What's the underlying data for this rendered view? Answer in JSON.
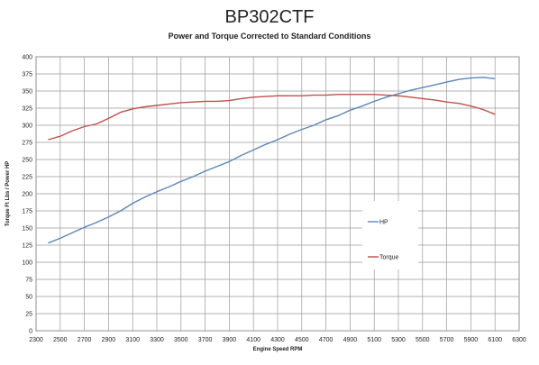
{
  "chart_data": {
    "type": "line",
    "title": "BP302CTF",
    "subtitle": "Power and Torque Corrected to Standard Conditions",
    "xlabel": "Engine Speed RPM",
    "ylabel": "Torque Ft Lbs / Power HP",
    "xlim": [
      2300,
      6300
    ],
    "ylim": [
      0,
      400
    ],
    "xticks": [
      2300,
      2500,
      2700,
      2900,
      3100,
      3300,
      3500,
      3700,
      3900,
      4100,
      4300,
      4500,
      4700,
      4900,
      5100,
      5300,
      5500,
      5700,
      5900,
      6100,
      6300
    ],
    "yticks": [
      0,
      25,
      50,
      75,
      100,
      125,
      150,
      175,
      200,
      225,
      250,
      275,
      300,
      325,
      350,
      375,
      400
    ],
    "grid": true,
    "legend_position": "right",
    "series": [
      {
        "name": "HP",
        "color": "#5b87b8",
        "x": [
          2400,
          2500,
          2600,
          2700,
          2800,
          2900,
          3000,
          3100,
          3200,
          3300,
          3400,
          3500,
          3600,
          3700,
          3800,
          3900,
          4000,
          4100,
          4200,
          4300,
          4400,
          4500,
          4600,
          4700,
          4800,
          4900,
          5000,
          5100,
          5200,
          5300,
          5400,
          5500,
          5600,
          5700,
          5800,
          5900,
          6000,
          6100
        ],
        "y": [
          128,
          135,
          143,
          151,
          158,
          166,
          175,
          186,
          195,
          203,
          210,
          218,
          225,
          233,
          240,
          247,
          256,
          264,
          272,
          279,
          287,
          294,
          300,
          308,
          314,
          322,
          328,
          335,
          341,
          346,
          351,
          355,
          359,
          363,
          367,
          369,
          370,
          368
        ]
      },
      {
        "name": "Torque",
        "color": "#c0504d",
        "x": [
          2400,
          2500,
          2600,
          2700,
          2800,
          2900,
          3000,
          3100,
          3200,
          3300,
          3400,
          3500,
          3600,
          3700,
          3800,
          3900,
          4000,
          4100,
          4200,
          4300,
          4400,
          4500,
          4600,
          4700,
          4800,
          4900,
          5000,
          5100,
          5200,
          5300,
          5400,
          5500,
          5600,
          5700,
          5800,
          5900,
          6000,
          6100
        ],
        "y": [
          279,
          284,
          292,
          298,
          302,
          310,
          319,
          324,
          327,
          329,
          331,
          333,
          334,
          335,
          335,
          336,
          339,
          341,
          342,
          343,
          343,
          343,
          344,
          344,
          345,
          345,
          345,
          345,
          344,
          343,
          341,
          339,
          337,
          334,
          332,
          328,
          323,
          316
        ]
      }
    ]
  }
}
